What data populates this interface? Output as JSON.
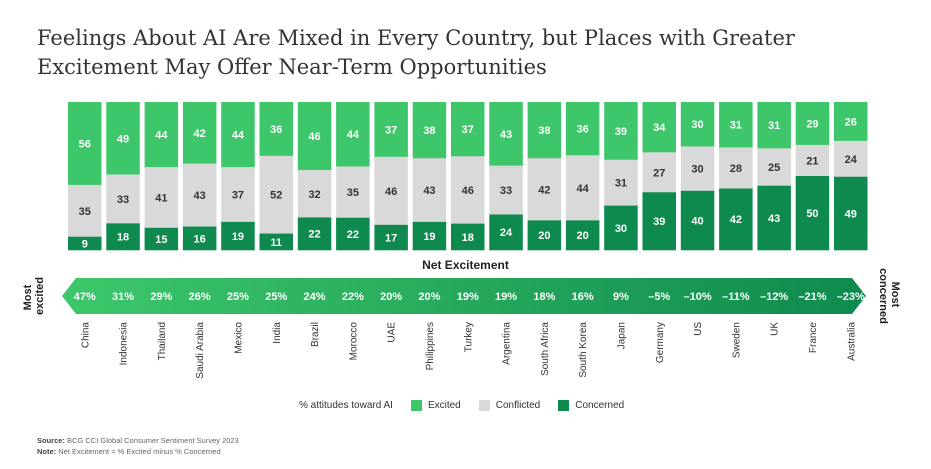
{
  "title_line1": "Feelings About AI Are Mixed in Every Country, but Places with Greater",
  "title_line2": "Excitement May Offer Near-Term Opportunities",
  "chart_data": {
    "type": "bar",
    "stacked": true,
    "categories": [
      "China",
      "Indonesia",
      "Thailand",
      "Saudi Arabia",
      "Mexico",
      "India",
      "Brazil",
      "Morocco",
      "UAE",
      "Philippines",
      "Turkey",
      "Argentina",
      "South Africa",
      "South Korea",
      "Japan",
      "Germany",
      "US",
      "Sweden",
      "UK",
      "France",
      "Australia"
    ],
    "series": [
      {
        "name": "Excited",
        "values": [
          56,
          49,
          44,
          42,
          44,
          36,
          46,
          44,
          37,
          38,
          37,
          43,
          38,
          36,
          39,
          34,
          30,
          31,
          31,
          29,
          26
        ]
      },
      {
        "name": "Conflicted",
        "values": [
          35,
          33,
          41,
          43,
          37,
          52,
          32,
          35,
          46,
          43,
          46,
          33,
          42,
          44,
          31,
          27,
          30,
          28,
          25,
          21,
          24
        ]
      },
      {
        "name": "Concerned",
        "values": [
          9,
          18,
          15,
          16,
          19,
          11,
          22,
          22,
          17,
          19,
          18,
          24,
          20,
          20,
          30,
          39,
          40,
          42,
          43,
          50,
          49
        ]
      }
    ],
    "net_excitement_title": "Net Excitement",
    "net_excitement": [
      "47%",
      "31%",
      "29%",
      "26%",
      "25%",
      "25%",
      "24%",
      "22%",
      "20%",
      "20%",
      "19%",
      "19%",
      "18%",
      "16%",
      "9%",
      "–5%",
      "–10%",
      "–11%",
      "–12%",
      "–21%",
      "–23%"
    ],
    "left_label": [
      "Most",
      "excited"
    ],
    "right_label": [
      "Most",
      "concerned"
    ],
    "ylim": [
      0,
      100
    ],
    "legend_position": "bottom-center"
  },
  "colors": {
    "excited": "#3DC76A",
    "conflicted": "#D9D9D9",
    "concerned": "#0E8A4E",
    "excited_text": "#ffffff",
    "conflicted_text": "#333333",
    "concerned_text": "#ffffff"
  },
  "legend": {
    "title": "% attitudes toward AI",
    "excited": "Excited",
    "conflicted": "Conflicted",
    "concerned": "Concerned"
  },
  "footer": {
    "source_label": "Source:",
    "source_text": " BCG CCI Global Consumer Sentiment Survey 2023",
    "note_label": "Note:",
    "note_text": " Net Excitement = % Excited minus % Concerned"
  }
}
